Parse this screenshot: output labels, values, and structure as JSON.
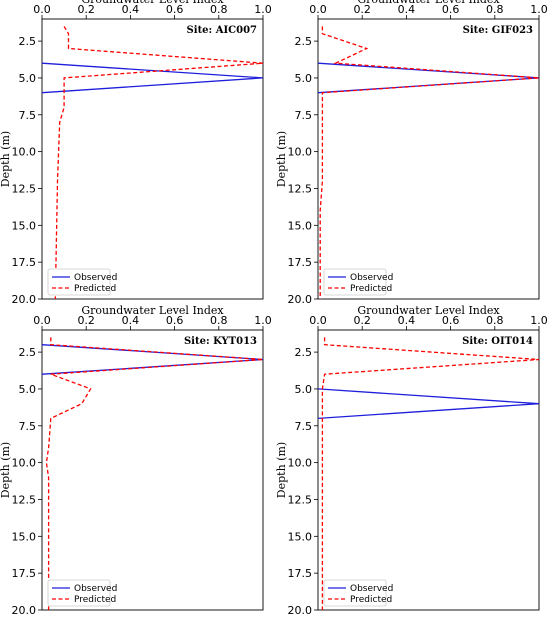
{
  "chart_data": [
    {
      "type": "line",
      "site": "Site: AIC007",
      "xlabel": "Groundwater Level Index",
      "ylabel": "Depth (m)",
      "xlim": [
        0,
        1.0
      ],
      "ylim": [
        1.0,
        20.0
      ],
      "y_inverted": true,
      "x_ticks": [
        "0.0",
        "0.2",
        "0.4",
        "0.6",
        "0.8",
        "1.0"
      ],
      "y_ticks": [
        "2.5",
        "5.0",
        "7.5",
        "10.0",
        "12.5",
        "15.0",
        "17.5",
        "20.0"
      ],
      "legend_position": "lower-left",
      "series": [
        {
          "name": "Observed",
          "color": "#1f1fdc",
          "style": "solid",
          "x": [
            0.0,
            1.0,
            0.0
          ],
          "y": [
            4.0,
            5.0,
            6.0
          ]
        },
        {
          "name": "Predicted",
          "color": "#ff0000",
          "style": "dashed",
          "x": [
            0.1,
            0.12,
            0.12,
            1.0,
            0.1,
            0.1,
            0.08,
            0.07,
            0.06
          ],
          "y": [
            1.5,
            2.0,
            3.0,
            4.0,
            5.0,
            7.0,
            8.0,
            12.0,
            20.0
          ]
        }
      ]
    },
    {
      "type": "line",
      "site": "Site: GIF023",
      "xlabel": "Groundwater Level Index",
      "ylabel": "Depth (m)",
      "xlim": [
        0,
        1.0
      ],
      "ylim": [
        1.0,
        20.0
      ],
      "y_inverted": true,
      "x_ticks": [
        "0.0",
        "0.2",
        "0.4",
        "0.6",
        "0.8",
        "1.0"
      ],
      "y_ticks": [
        "2.5",
        "5.0",
        "7.5",
        "10.0",
        "12.5",
        "15.0",
        "17.5",
        "20.0"
      ],
      "legend_position": "lower-left",
      "series": [
        {
          "name": "Observed",
          "color": "#1f1fdc",
          "style": "solid",
          "x": [
            0.0,
            1.0,
            0.0
          ],
          "y": [
            4.0,
            5.0,
            6.0
          ]
        },
        {
          "name": "Predicted",
          "color": "#ff0000",
          "style": "dashed",
          "x": [
            0.02,
            0.02,
            0.22,
            0.08,
            1.0,
            0.02,
            0.02,
            0.02,
            0.01,
            0.01
          ],
          "y": [
            1.5,
            2.0,
            3.0,
            4.0,
            5.0,
            6.0,
            8.0,
            12.0,
            14.0,
            20.0
          ]
        }
      ]
    },
    {
      "type": "line",
      "site": "Site: KYT013",
      "xlabel": "Groundwater Level Index",
      "ylabel": "Depth (m)",
      "xlim": [
        0,
        1.0
      ],
      "ylim": [
        1.0,
        20.0
      ],
      "y_inverted": true,
      "x_ticks": [
        "0.0",
        "0.2",
        "0.4",
        "0.6",
        "0.8",
        "1.0"
      ],
      "y_ticks": [
        "2.5",
        "5.0",
        "7.5",
        "10.0",
        "12.5",
        "15.0",
        "17.5",
        "20.0"
      ],
      "legend_position": "lower-left",
      "series": [
        {
          "name": "Observed",
          "color": "#1f1fdc",
          "style": "solid",
          "x": [
            0.0,
            1.0,
            0.0
          ],
          "y": [
            2.0,
            3.0,
            4.0
          ]
        },
        {
          "name": "Predicted",
          "color": "#ff0000",
          "style": "dashed",
          "x": [
            0.04,
            0.04,
            1.0,
            0.04,
            0.22,
            0.18,
            0.04,
            0.03,
            0.02,
            0.03,
            0.03
          ],
          "y": [
            1.5,
            2.0,
            3.0,
            4.0,
            5.0,
            6.0,
            7.0,
            9.0,
            10.0,
            11.0,
            20.0
          ]
        }
      ]
    },
    {
      "type": "line",
      "site": "Site: OIT014",
      "xlabel": "Groundwater Level Index",
      "ylabel": "Depth (m)",
      "xlim": [
        0,
        1.0
      ],
      "ylim": [
        1.0,
        20.0
      ],
      "y_inverted": true,
      "x_ticks": [
        "0.0",
        "0.2",
        "0.4",
        "0.6",
        "0.8",
        "1.0"
      ],
      "y_ticks": [
        "2.5",
        "5.0",
        "7.5",
        "10.0",
        "12.5",
        "15.0",
        "17.5",
        "20.0"
      ],
      "legend_position": "lower-left",
      "series": [
        {
          "name": "Observed",
          "color": "#1f1fdc",
          "style": "solid",
          "x": [
            0.0,
            1.0,
            0.0
          ],
          "y": [
            5.0,
            6.0,
            7.0
          ]
        },
        {
          "name": "Predicted",
          "color": "#ff0000",
          "style": "dashed",
          "x": [
            0.03,
            0.03,
            1.0,
            0.03,
            0.02,
            0.02,
            0.02,
            0.02
          ],
          "y": [
            1.5,
            2.0,
            3.0,
            4.0,
            5.0,
            8.0,
            12.0,
            20.0
          ]
        }
      ]
    }
  ]
}
